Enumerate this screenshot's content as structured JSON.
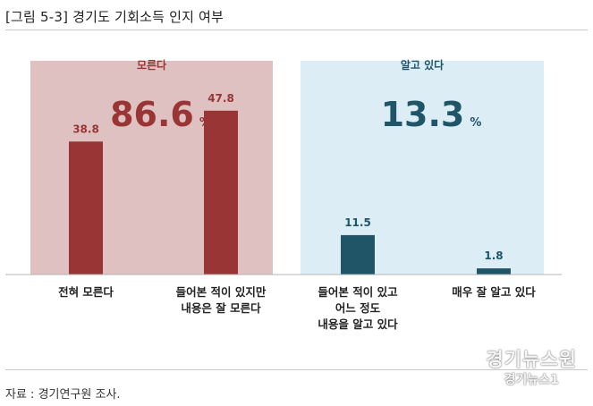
{
  "title": "[그림 5-3] 경기도 기회소득 인지 여부",
  "source": "자료 : 경기연구원 조사.",
  "watermark": {
    "line1": "경기뉴스원",
    "line2": "경기뉴스1"
  },
  "colors": {
    "left_panel": "#dfc1c1",
    "right_panel": "#dcedf5",
    "left_accent": "#9a3535",
    "right_accent": "#1f5566"
  },
  "chart_data": {
    "type": "bar",
    "ylim": [
      0,
      60
    ],
    "groups": [
      {
        "label": "모른다",
        "total": "86.6",
        "total_unit": "%",
        "categories": [
          "전혀 모른다",
          "들어본 적이 있지만\n내용은 잘 모른다"
        ],
        "values": [
          38.8,
          47.8
        ]
      },
      {
        "label": "알고 있다",
        "total": "13.3",
        "total_unit": "%",
        "categories": [
          "들어본 적이 있고\n어느 정도\n내용을 알고 있다",
          "매우 잘 알고 있다"
        ],
        "values": [
          11.5,
          1.8
        ]
      }
    ]
  }
}
